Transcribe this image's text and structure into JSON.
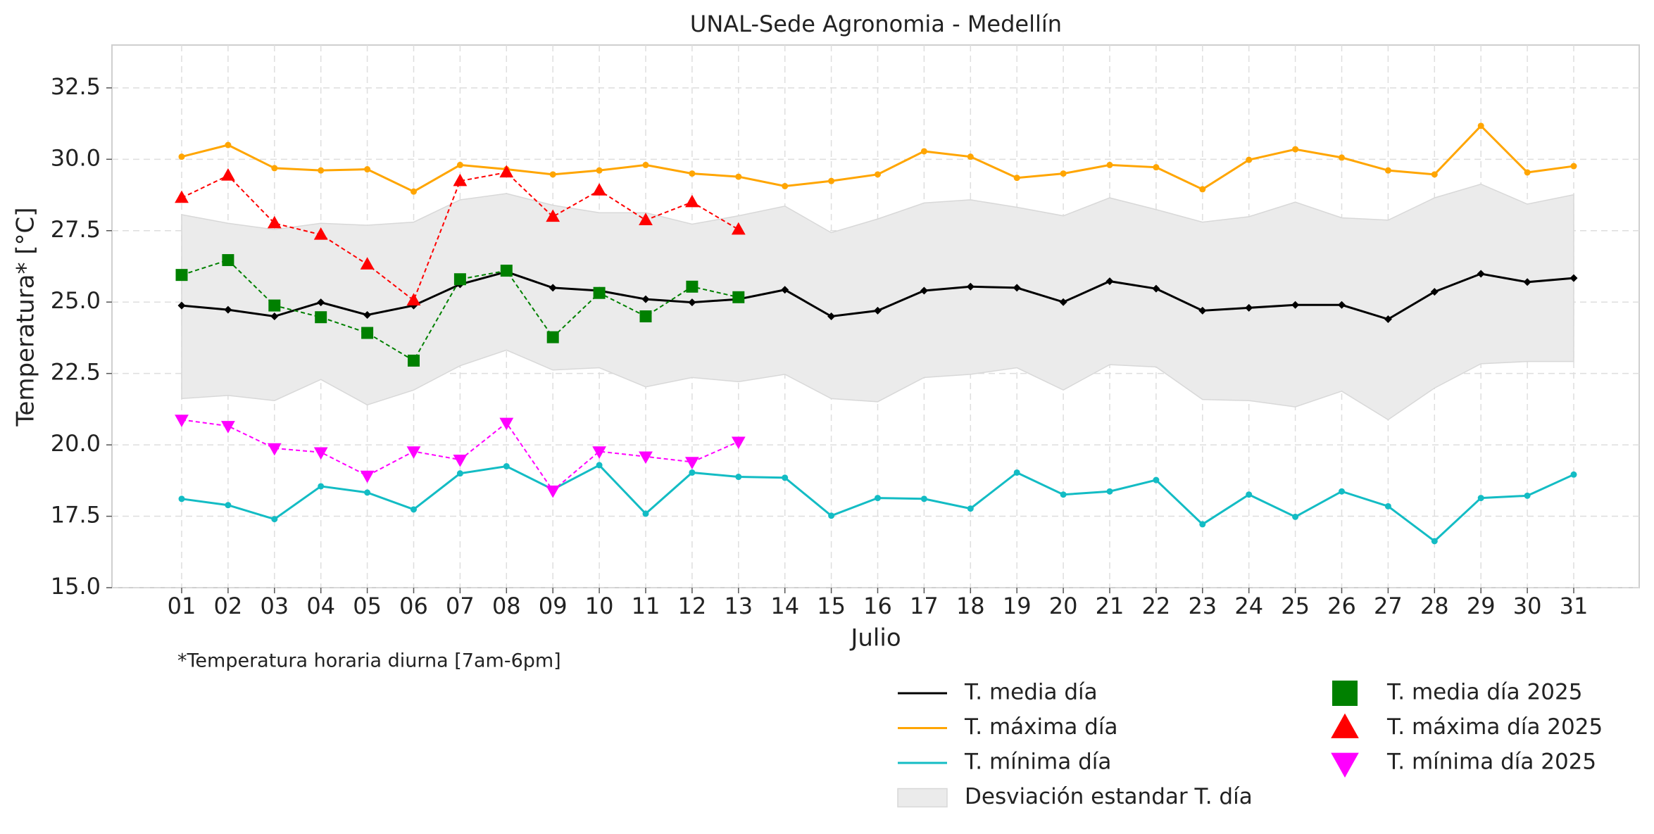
{
  "chart_data": {
    "type": "line",
    "title": "UNAL-Sede Agronomia - Medellín",
    "xlabel": "Julio",
    "ylabel": "Temperatura* [°C]",
    "note": "*Temperatura horaria diurna [7am-6pm]",
    "categories": [
      "01",
      "02",
      "03",
      "04",
      "05",
      "06",
      "07",
      "08",
      "09",
      "10",
      "11",
      "12",
      "13",
      "14",
      "15",
      "16",
      "17",
      "18",
      "19",
      "20",
      "21",
      "22",
      "23",
      "24",
      "25",
      "26",
      "27",
      "28",
      "29",
      "30",
      "31"
    ],
    "ylim": [
      15,
      34
    ],
    "yticks": [
      {
        "value": 15,
        "label": "15.0"
      },
      17.5,
      {
        "value": 20,
        "label": "20.0"
      },
      22.5,
      {
        "value": 25,
        "label": "25.0"
      },
      27.5,
      {
        "value": 30,
        "label": "30.0"
      },
      32.5
    ],
    "grid": true,
    "legend": "lower right",
    "series": [
      {
        "name": "T. media día",
        "color": "#000000",
        "marker": "D",
        "linestyle": "solid",
        "values": [
          24.88,
          24.73,
          24.5,
          24.99,
          24.55,
          24.88,
          25.62,
          26.06,
          25.5,
          25.4,
          25.1,
          24.99,
          25.1,
          25.43,
          24.5,
          24.7,
          25.4,
          25.54,
          25.5,
          25.0,
          25.73,
          25.47,
          24.7,
          24.8,
          24.9,
          24.9,
          24.4,
          25.36,
          25.99,
          25.7,
          25.84
        ]
      },
      {
        "name": "T. máxima día",
        "color": "#ffa500",
        "marker": "o",
        "linestyle": "solid",
        "values": [
          30.09,
          30.5,
          29.69,
          29.61,
          29.65,
          28.87,
          29.8,
          29.65,
          29.47,
          29.61,
          29.8,
          29.5,
          29.39,
          29.06,
          29.24,
          29.47,
          30.28,
          30.09,
          29.35,
          29.5,
          29.8,
          29.72,
          28.95,
          29.98,
          30.35,
          30.06,
          29.61,
          29.47,
          31.17,
          29.54,
          29.76
        ]
      },
      {
        "name": "T. mínima día",
        "color": "#13bcc4",
        "marker": "o",
        "linestyle": "solid",
        "values": [
          18.11,
          17.89,
          17.4,
          18.55,
          18.33,
          17.74,
          19.0,
          19.25,
          18.44,
          19.29,
          17.59,
          19.03,
          18.88,
          18.85,
          17.52,
          18.14,
          18.11,
          17.77,
          19.03,
          18.26,
          18.37,
          18.77,
          17.22,
          18.26,
          17.48,
          18.37,
          17.85,
          16.63,
          18.14,
          18.22,
          18.96
        ]
      },
      {
        "name": "Desviación estandar T. día",
        "color": "#ebebeb",
        "band": true,
        "upper": [
          28.06,
          27.76,
          27.54,
          27.76,
          27.69,
          27.8,
          28.58,
          28.8,
          28.39,
          28.13,
          28.13,
          27.73,
          28.02,
          28.36,
          27.43,
          27.91,
          28.47,
          28.58,
          28.32,
          28.02,
          28.65,
          28.24,
          27.8,
          27.99,
          28.5,
          27.95,
          27.87,
          28.65,
          29.13,
          28.43,
          28.76
        ],
        "lower": [
          21.62,
          21.73,
          21.55,
          22.29,
          21.4,
          21.92,
          22.77,
          23.32,
          22.62,
          22.7,
          22.03,
          22.36,
          22.21,
          22.47,
          21.62,
          21.51,
          22.36,
          22.47,
          22.7,
          21.92,
          22.81,
          22.73,
          21.59,
          21.55,
          21.33,
          21.88,
          20.88,
          21.99,
          22.84,
          22.92,
          22.92
        ]
      },
      {
        "name": "T. media día 2025",
        "color": "#008000",
        "marker": "s",
        "linestyle": "dashed",
        "values": [
          25.95,
          26.47,
          24.88,
          24.47,
          23.92,
          22.95,
          25.8,
          26.1,
          23.77,
          25.32,
          24.5,
          25.54,
          25.17,
          null,
          null,
          null,
          null,
          null,
          null,
          null,
          null,
          null,
          null,
          null,
          null,
          null,
          null,
          null,
          null,
          null,
          null
        ]
      },
      {
        "name": "T. máxima día 2025",
        "color": "#ff0000",
        "marker": "^",
        "linestyle": "dashed",
        "values": [
          28.65,
          29.43,
          27.76,
          27.36,
          26.32,
          25.06,
          29.24,
          29.54,
          27.99,
          28.91,
          27.87,
          28.5,
          27.54,
          null,
          null,
          null,
          null,
          null,
          null,
          null,
          null,
          null,
          null,
          null,
          null,
          null,
          null,
          null,
          null,
          null,
          null
        ]
      },
      {
        "name": "T. mínima día 2025",
        "color": "#ff00ff",
        "marker": "v",
        "linestyle": "dashed",
        "values": [
          20.88,
          20.66,
          19.88,
          19.74,
          18.92,
          19.77,
          19.48,
          20.77,
          18.4,
          19.77,
          19.59,
          19.4,
          20.11,
          null,
          null,
          null,
          null,
          null,
          null,
          null,
          null,
          null,
          null,
          null,
          null,
          null,
          null,
          null,
          null,
          null,
          null
        ]
      }
    ]
  }
}
